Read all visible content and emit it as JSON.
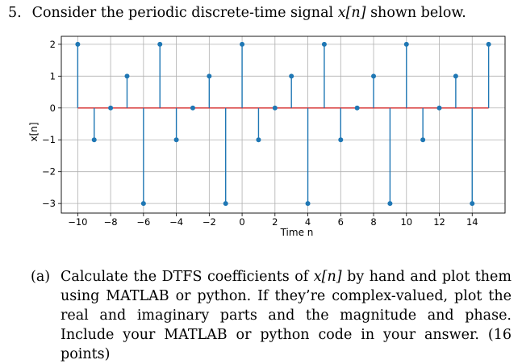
{
  "problem": {
    "number": "5.",
    "text_before": "Consider the periodic discrete-time signal",
    "signal": "x[n]",
    "text_after": "shown below."
  },
  "chart_data": {
    "type": "stem",
    "title": "",
    "xlabel": "Time n",
    "ylabel": "x[n]",
    "xlim": [
      -11,
      16
    ],
    "ylim": [
      -3.3,
      2.25
    ],
    "grid": true,
    "xticks": [
      -10,
      -8,
      -6,
      -4,
      -2,
      0,
      2,
      4,
      6,
      8,
      10,
      12,
      14
    ],
    "xtick_labels": [
      "−10",
      "−8",
      "−6",
      "−4",
      "−2",
      "0",
      "2",
      "4",
      "6",
      "8",
      "10",
      "12",
      "14"
    ],
    "yticks": [
      2,
      1,
      0,
      -1,
      -2,
      -3
    ],
    "ytick_labels": [
      "2",
      "1",
      "0",
      "−1",
      "−2",
      "−3"
    ],
    "x": [
      -10,
      -9,
      -8,
      -7,
      -6,
      -5,
      -4,
      -3,
      -2,
      -1,
      0,
      1,
      2,
      3,
      4,
      5,
      6,
      7,
      8,
      9,
      10,
      11,
      12,
      13,
      14,
      15
    ],
    "values": [
      2,
      -1,
      0,
      1,
      -3,
      2,
      -1,
      0,
      1,
      -3,
      2,
      -1,
      0,
      1,
      -3,
      2,
      -1,
      0,
      1,
      -3,
      2,
      -1,
      0,
      1,
      -3,
      2
    ],
    "colors": {
      "stem": "#1f77b4",
      "baseline": "#d62728",
      "grid": "#b0b0b0",
      "axes": "#000000"
    }
  },
  "part_a": {
    "label": "(a)",
    "line1_before": "Calculate the DTFS coefficients of",
    "signal": "x[n]",
    "line1_after": "by hand and plot them using MATLAB or python. If they’re complex-valued, plot the real and imaginary parts and the magnitude and phase. Include your MATLAB or python code in your answer. (16 points)"
  }
}
